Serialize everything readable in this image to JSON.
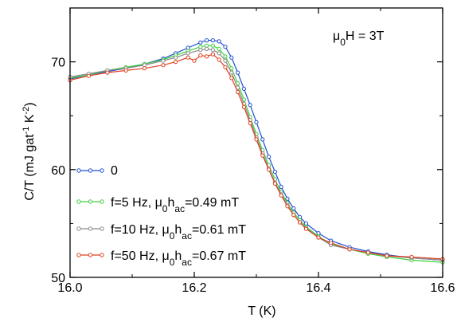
{
  "chart_data": {
    "type": "line",
    "title": "",
    "xlabel": "T (K)",
    "ylabel": "C/T (mJ gat",
    "ylabel_parts": {
      "sup1": "-1",
      "mid": " K",
      "sup2": "-2",
      "end": ")"
    },
    "xlim": [
      16.0,
      16.6
    ],
    "ylim": [
      50,
      75
    ],
    "xticks": [
      16.0,
      16.2,
      16.4,
      16.6
    ],
    "xtick_labels": [
      "16.0",
      "16.2",
      "16.4",
      "16.6"
    ],
    "yticks": [
      50,
      60,
      70
    ],
    "ytick_labels": [
      "50",
      "60",
      "70"
    ],
    "grid": false,
    "legend_position": "bottom-left",
    "annotation": {
      "prefix": "μ",
      "sub": "0",
      "suffix": "H = 3T"
    },
    "series": [
      {
        "name": "0",
        "legend": {
          "text": "0"
        },
        "color": "#1f4fd0",
        "x": [
          16.0,
          16.03,
          16.06,
          16.09,
          16.12,
          16.15,
          16.17,
          16.19,
          16.21,
          16.22,
          16.23,
          16.24,
          16.25,
          16.26,
          16.27,
          16.28,
          16.29,
          16.3,
          16.31,
          16.32,
          16.33,
          16.34,
          16.35,
          16.36,
          16.37,
          16.38,
          16.4,
          16.42,
          16.45,
          16.48,
          16.51,
          16.55,
          16.6
        ],
        "y": [
          68.4,
          68.8,
          69.1,
          69.4,
          69.8,
          70.3,
          70.8,
          71.3,
          71.8,
          72.0,
          72.0,
          71.9,
          71.4,
          70.4,
          69.0,
          67.5,
          66.0,
          64.4,
          62.8,
          61.2,
          59.8,
          58.4,
          57.3,
          56.4,
          55.6,
          55.0,
          54.1,
          53.4,
          52.8,
          52.4,
          52.1,
          51.8,
          51.6
        ]
      },
      {
        "name": "f=5 Hz",
        "legend": {
          "a": "f=5 Hz, μ",
          "sub1": "0",
          "b": "h",
          "sub2": "ac",
          "c": "=0.49 mT"
        },
        "color": "#3fcf3f",
        "x": [
          16.0,
          16.03,
          16.06,
          16.09,
          16.12,
          16.15,
          16.17,
          16.19,
          16.21,
          16.22,
          16.23,
          16.24,
          16.25,
          16.26,
          16.27,
          16.28,
          16.29,
          16.3,
          16.31,
          16.32,
          16.33,
          16.34,
          16.35,
          16.36,
          16.37,
          16.38,
          16.4,
          16.42,
          16.45,
          16.48,
          16.51,
          16.55,
          16.6
        ],
        "y": [
          68.5,
          68.8,
          69.2,
          69.5,
          69.8,
          70.2,
          70.6,
          71.0,
          71.4,
          71.5,
          71.5,
          71.2,
          70.5,
          69.4,
          68.0,
          66.5,
          64.9,
          63.3,
          61.8,
          60.4,
          59.1,
          57.9,
          56.9,
          56.0,
          55.3,
          54.7,
          53.8,
          53.1,
          52.6,
          52.2,
          51.9,
          51.6,
          51.4
        ]
      },
      {
        "name": "f=10 Hz",
        "legend": {
          "a": "f=10 Hz, μ",
          "sub1": "0",
          "b": "h",
          "sub2": "ac",
          "c": "=0.61 mT"
        },
        "color": "#8a8a8a",
        "x": [
          16.0,
          16.03,
          16.06,
          16.09,
          16.12,
          16.15,
          16.17,
          16.19,
          16.21,
          16.22,
          16.23,
          16.24,
          16.25,
          16.26,
          16.27,
          16.28,
          16.29,
          16.3,
          16.31,
          16.32,
          16.33,
          16.34,
          16.35,
          16.36,
          16.37,
          16.38,
          16.4,
          16.42,
          16.45,
          16.48,
          16.51,
          16.55,
          16.6
        ],
        "y": [
          68.6,
          68.9,
          69.2,
          69.4,
          69.7,
          70.1,
          70.4,
          70.8,
          71.1,
          71.2,
          71.1,
          70.8,
          70.1,
          69.0,
          67.6,
          66.1,
          64.6,
          63.0,
          61.5,
          60.1,
          58.8,
          57.7,
          56.7,
          55.8,
          55.1,
          54.6,
          53.7,
          53.0,
          52.6,
          52.3,
          52.0,
          51.8,
          51.6
        ]
      },
      {
        "name": "f=50 Hz",
        "legend": {
          "a": "f=50 Hz, μ",
          "sub1": "0",
          "b": "h",
          "sub2": "ac",
          "c": "=0.67 mT"
        },
        "color": "#e0401f",
        "x": [
          16.0,
          16.03,
          16.06,
          16.09,
          16.12,
          16.15,
          16.17,
          16.19,
          16.2,
          16.21,
          16.22,
          16.23,
          16.24,
          16.25,
          16.26,
          16.27,
          16.28,
          16.29,
          16.3,
          16.31,
          16.32,
          16.33,
          16.34,
          16.35,
          16.36,
          16.37,
          16.38,
          16.4,
          16.42,
          16.45,
          16.48,
          16.51,
          16.55,
          16.6
        ],
        "y": [
          68.3,
          68.7,
          69.0,
          69.2,
          69.4,
          69.7,
          70.0,
          70.4,
          70.1,
          70.6,
          70.5,
          70.7,
          70.2,
          69.5,
          68.5,
          67.2,
          65.8,
          64.3,
          62.8,
          61.3,
          60.0,
          58.7,
          57.6,
          56.6,
          55.8,
          55.1,
          54.5,
          53.7,
          53.2,
          52.6,
          52.3,
          52.0,
          51.9,
          51.7
        ]
      }
    ]
  }
}
